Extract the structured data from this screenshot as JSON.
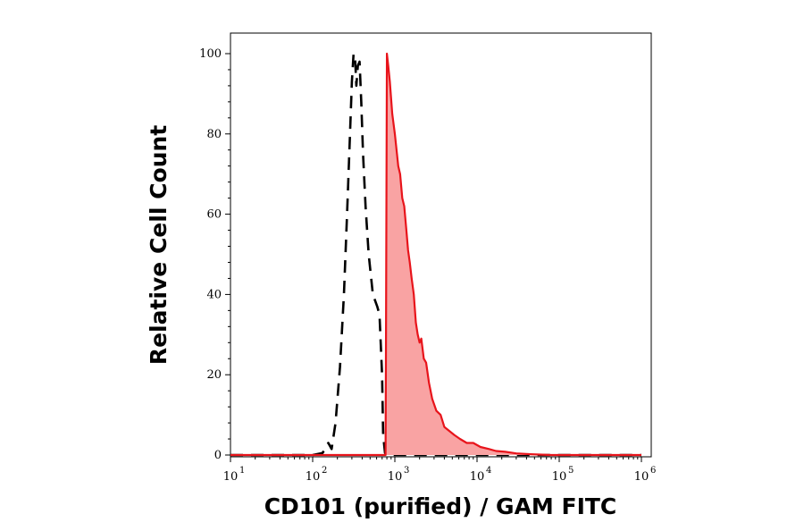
{
  "chart_data": {
    "type": "area",
    "title": "",
    "xlabel": "CD101 (purified) / GAM FITC",
    "ylabel": "Relative Cell Count",
    "xscale": "log",
    "xlim": [
      10,
      1000000
    ],
    "ylim": [
      0,
      100
    ],
    "grid": false,
    "x_ticks": [
      {
        "base": "10",
        "exp": "1",
        "value": 10
      },
      {
        "base": "10",
        "exp": "2",
        "value": 100
      },
      {
        "base": "10",
        "exp": "3",
        "value": 1000
      },
      {
        "base": "10",
        "exp": "4",
        "value": 10000
      },
      {
        "base": "10",
        "exp": "5",
        "value": 100000
      },
      {
        "base": "10",
        "exp": "6",
        "value": 1000000
      }
    ],
    "y_ticks": [
      "0",
      "20",
      "40",
      "60",
      "80",
      "100"
    ],
    "series": [
      {
        "style": "dashed",
        "color": "#000000",
        "fill": "none",
        "x": [
          10,
          100,
          132,
          145,
          155,
          170,
          190,
          215,
          240,
          262,
          285,
          300,
          315,
          330,
          340,
          355,
          372,
          390,
          410,
          440,
          480,
          540,
          610,
          650,
          700,
          720,
          760,
          800,
          1000000
        ],
        "y": [
          0,
          0,
          0.5,
          2,
          3,
          1.5,
          8,
          22,
          40,
          60,
          80,
          93,
          100,
          98,
          92,
          97,
          98,
          88,
          75,
          62,
          50,
          40,
          37,
          35,
          20,
          5,
          0.5,
          0,
          0
        ]
      },
      {
        "style": "solid",
        "color": "#e8141b",
        "fill": "#f9a3a3",
        "x": [
          10,
          770,
          780,
          800,
          830,
          870,
          930,
          1000,
          1050,
          1100,
          1160,
          1230,
          1300,
          1380,
          1450,
          1520,
          1600,
          1700,
          1800,
          1900,
          2000,
          2100,
          2250,
          2400,
          2600,
          2850,
          3200,
          3600,
          4000,
          4600,
          5300,
          6200,
          7500,
          9000,
          11000,
          14000,
          17000,
          22000,
          30000,
          45000,
          80000,
          1000000
        ],
        "y": [
          0,
          0,
          30,
          100,
          97,
          93,
          85,
          80,
          76,
          72,
          70,
          64,
          62,
          56,
          51,
          48,
          44,
          40,
          33,
          30,
          28,
          29,
          24,
          23,
          18,
          14,
          11,
          10,
          7,
          6,
          5,
          4,
          3,
          3,
          2,
          1.5,
          1,
          0.8,
          0.4,
          0.2,
          0,
          0
        ]
      }
    ]
  }
}
